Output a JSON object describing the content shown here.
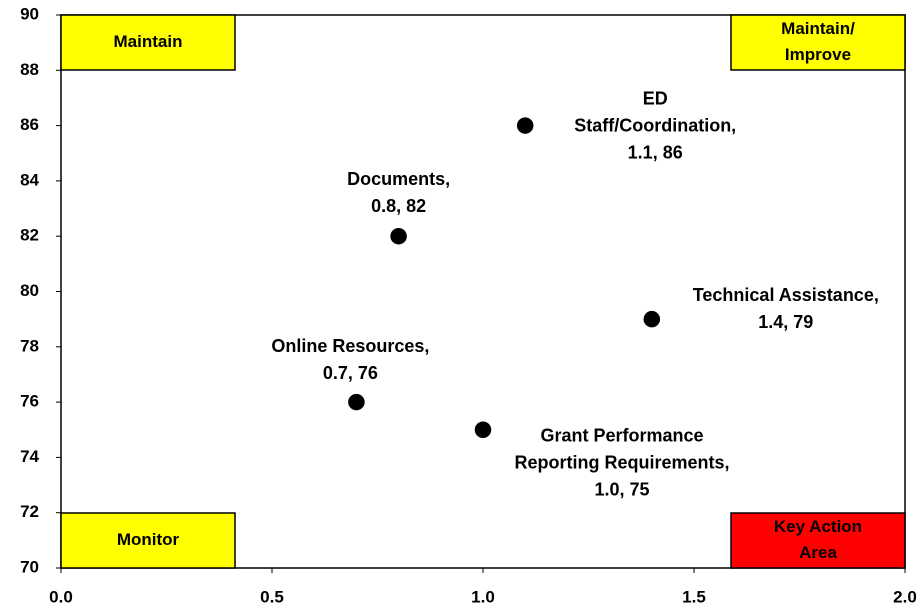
{
  "chart_data": {
    "type": "scatter",
    "points": [
      {
        "x": 1.1,
        "y": 86,
        "label": [
          "ED",
          "Staff/Coordination,",
          "1.1, 86"
        ]
      },
      {
        "x": 0.8,
        "y": 82,
        "label": [
          "Documents,",
          "0.8, 82"
        ]
      },
      {
        "x": 1.4,
        "y": 79,
        "label": [
          "Technical Assistance,",
          "1.4, 79"
        ]
      },
      {
        "x": 0.7,
        "y": 76,
        "label": [
          "Online Resources,",
          "0.7, 76"
        ]
      },
      {
        "x": 1.0,
        "y": 75,
        "label": [
          "Grant Performance",
          "Reporting Requirements,",
          "1.0, 75"
        ]
      }
    ],
    "color": "#000000",
    "xlim": [
      0,
      2
    ],
    "ylim": [
      70,
      90
    ],
    "xticks": [
      {
        "value": 0,
        "label": "0.0"
      },
      0.5,
      {
        "value": 1,
        "label": "1.0"
      },
      1.5,
      {
        "value": 2,
        "label": "2.0"
      }
    ],
    "yticks": [
      70,
      72,
      74,
      76,
      78,
      80,
      82,
      84,
      86,
      88,
      90
    ],
    "quadrants": [
      {
        "corner": "top-left",
        "text": [
          "Maintain"
        ],
        "color": "#ffff00"
      },
      {
        "corner": "top-right",
        "text": [
          "Maintain/",
          "Improve"
        ],
        "color": "#ffff00"
      },
      {
        "corner": "bottom-left",
        "text": [
          "Monitor"
        ],
        "color": "#ffff00"
      },
      {
        "corner": "bottom-right",
        "text": [
          "Key Action",
          "Area"
        ],
        "color": "#ff0000"
      }
    ]
  }
}
